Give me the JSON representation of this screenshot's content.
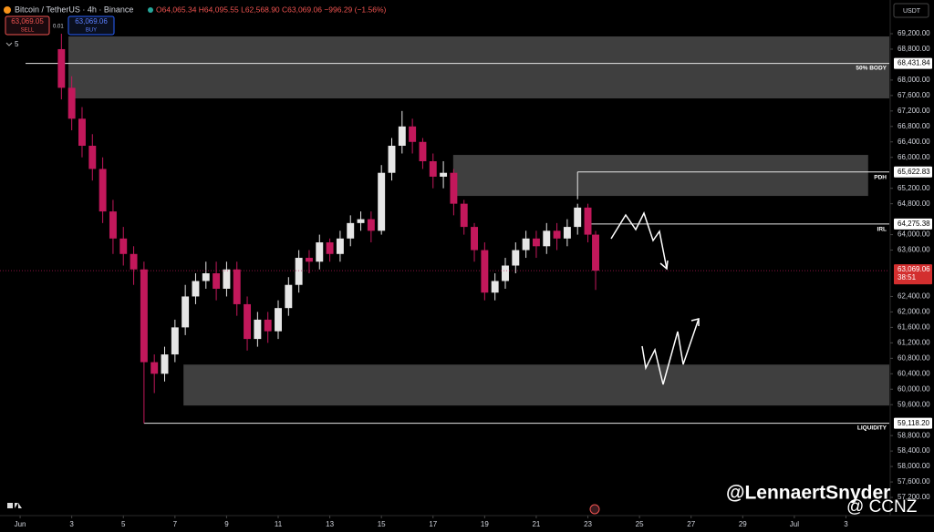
{
  "header": {
    "symbol": "Bitcoin / TetherUS · 4h · Binance",
    "ohlc": "O64,065.34 H64,095.55 L62,568.90 C63,069.06 −996.29 (−1.56%)",
    "sell_price": "63,069.05",
    "sell_label": "SELL",
    "buy_price": "63,069.06",
    "buy_label": "BUY",
    "spread": "0.01",
    "indicator_count": "5",
    "currency": "USDT"
  },
  "chart_data": {
    "type": "candlestick",
    "x": [
      2.6,
      3.0,
      3.4,
      3.8,
      4.2,
      4.6,
      5.0,
      5.4,
      5.8,
      6.2,
      6.6,
      7.0,
      7.4,
      7.8,
      8.2,
      8.6,
      9.0,
      9.4,
      9.8,
      10.2,
      10.6,
      11.0,
      11.4,
      11.8,
      12.2,
      12.6,
      13.0,
      13.4,
      13.8,
      14.2,
      14.6,
      15.0,
      15.4,
      15.8,
      16.2,
      16.6,
      17.0,
      17.4,
      17.8,
      18.2,
      18.6,
      19.0,
      19.4,
      19.8,
      20.2,
      20.6,
      21.0,
      21.4,
      21.8,
      22.2,
      22.6,
      23.0,
      23.3
    ],
    "open": [
      68800,
      67800,
      67000,
      66300,
      65700,
      64600,
      63900,
      63500,
      63100,
      60700,
      60400,
      60900,
      61600,
      62400,
      62800,
      63000,
      62600,
      63100,
      62200,
      61300,
      61800,
      61500,
      62100,
      62700,
      63400,
      63300,
      63800,
      63500,
      63900,
      64300,
      64400,
      64100,
      65600,
      66300,
      66800,
      66400,
      65900,
      65500,
      65600,
      64800,
      64200,
      63600,
      62500,
      62800,
      63200,
      63600,
      63900,
      63700,
      64100,
      63900,
      64200,
      64700,
      64000
    ],
    "high": [
      69200,
      68100,
      67300,
      66600,
      66000,
      64900,
      64200,
      63700,
      63300,
      60900,
      61100,
      61800,
      62700,
      63000,
      63300,
      63300,
      63300,
      63300,
      62400,
      62000,
      62000,
      62300,
      62900,
      63600,
      63600,
      64000,
      63900,
      64100,
      64500,
      64600,
      64600,
      65800,
      66500,
      67200,
      67000,
      66500,
      66100,
      65900,
      65700,
      64900,
      64300,
      63800,
      63000,
      63400,
      63800,
      64100,
      64100,
      64300,
      64300,
      64400,
      64800,
      64800,
      64095.55
    ],
    "low": [
      67500,
      66700,
      66000,
      65400,
      64300,
      63500,
      63200,
      62700,
      59118.2,
      59900,
      60200,
      60700,
      61400,
      62200,
      62600,
      62300,
      62400,
      61900,
      61000,
      61100,
      61200,
      61300,
      61900,
      62500,
      63000,
      63100,
      63300,
      63300,
      63700,
      64100,
      63800,
      64000,
      65400,
      66100,
      66100,
      65700,
      65200,
      65200,
      64500,
      64000,
      63300,
      62300,
      62300,
      62600,
      63000,
      63400,
      63400,
      63500,
      63600,
      63700,
      64000,
      63800,
      62568.9
    ],
    "close": [
      67800,
      67000,
      66300,
      65700,
      64600,
      63900,
      63500,
      63100,
      60700,
      60400,
      60900,
      61600,
      62400,
      62800,
      63000,
      62600,
      63100,
      62200,
      61300,
      61800,
      61500,
      62100,
      62700,
      63400,
      63300,
      63800,
      63500,
      63900,
      64300,
      64400,
      64100,
      65600,
      66300,
      66800,
      66400,
      65900,
      65500,
      65600,
      64800,
      64200,
      63600,
      62500,
      62800,
      63200,
      63600,
      63900,
      63700,
      64100,
      63900,
      64200,
      64700,
      64000,
      63069.06
    ],
    "up_color": "#e6e6e6",
    "down_color": "#c2185b",
    "xlim": [
      0.22,
      34.68
    ],
    "ylim": [
      56753,
      70072
    ],
    "grid": false,
    "xticks": [
      {
        "value": 1,
        "label": "Jun"
      },
      3,
      5,
      7,
      9,
      11,
      13,
      15,
      17,
      19,
      21,
      23,
      25,
      27,
      29,
      {
        "value": 31,
        "label": "Jul"
      },
      {
        "value": 33,
        "label": "3"
      }
    ],
    "yticks": [
      {
        "value": 69200,
        "label": "69,200.00"
      },
      {
        "value": 68800,
        "label": "68,800.00"
      },
      {
        "value": 68000,
        "label": "68,000.00"
      },
      {
        "value": 67600,
        "label": "67,600.00"
      },
      {
        "value": 67200,
        "label": "67,200.00"
      },
      {
        "value": 66800,
        "label": "66,800.00"
      },
      {
        "value": 66400,
        "label": "66,400.00"
      },
      {
        "value": 66000,
        "label": "66,000.00"
      },
      {
        "value": 65200,
        "label": "65,200.00"
      },
      {
        "value": 64800,
        "label": "64,800.00"
      },
      {
        "value": 64000,
        "label": "64,000.00"
      },
      {
        "value": 63600,
        "label": "63,600.00"
      },
      {
        "value": 62400,
        "label": "62,400.00"
      },
      {
        "value": 62000,
        "label": "62,000.00"
      },
      {
        "value": 61600,
        "label": "61,600.00"
      },
      {
        "value": 61200,
        "label": "61,200.00"
      },
      {
        "value": 60800,
        "label": "60,800.00"
      },
      {
        "value": 60400,
        "label": "60,400.00"
      },
      {
        "value": 60000,
        "label": "60,000.00"
      },
      {
        "value": 59600,
        "label": "59,600.00"
      },
      {
        "value": 58800,
        "label": "58,800.00"
      },
      {
        "value": 58400,
        "label": "58,400.00"
      },
      {
        "value": 58000,
        "label": "58,000.00"
      },
      {
        "value": 57600,
        "label": "57,600.00"
      },
      {
        "value": 57200,
        "label": "57,200.00"
      }
    ],
    "zones": [
      {
        "x": [
          2.87,
          34.68
        ],
        "y": [
          67525,
          69129
        ]
      },
      {
        "x": [
          17.78,
          33.86
        ],
        "y": [
          65002,
          66063
        ]
      },
      {
        "x": [
          7.33,
          34.68
        ],
        "y": [
          59578,
          60638
        ]
      }
    ],
    "zone_color": "#4a4a4a",
    "levels": [
      {
        "label": "50% BODY",
        "value": 68431.84,
        "value_label": "68,431.84",
        "x_start": 1.21
      },
      {
        "label": "PDH",
        "value": 65622.83,
        "value_label": "65,622.83",
        "x_start": 22.6
      },
      {
        "label": "IRL",
        "value": 64275.38,
        "value_label": "64,275.38",
        "x_start": 23.1
      },
      {
        "label": "LIQUIDITY",
        "value": 59118.2,
        "value_label": "59,118.20",
        "x_start": 5.8
      }
    ],
    "last_price": {
      "value": 63069.06,
      "label": "63,069.06",
      "countdown": "38:51"
    }
  },
  "watermark": [
    "@LennaertSnyder",
    "@ CCNZ"
  ]
}
